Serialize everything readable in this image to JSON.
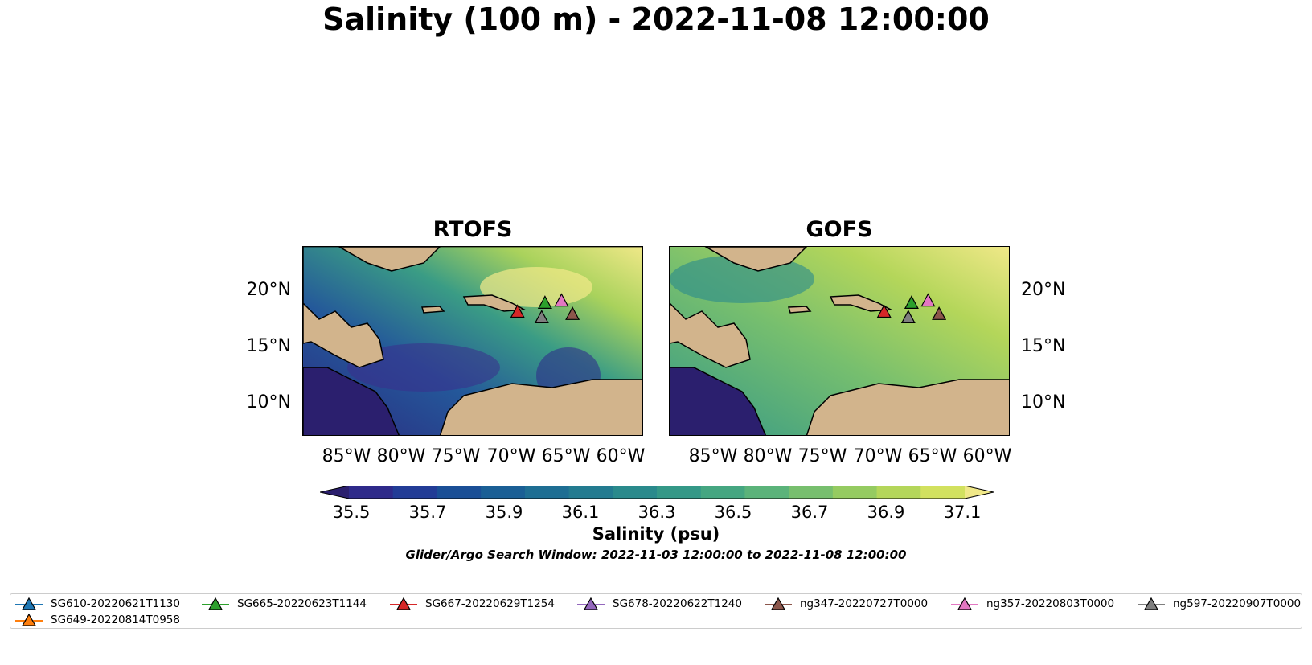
{
  "title": "Salinity (100 m) - 2022-11-08 12:00:00",
  "panels": [
    {
      "title": "RTOFS"
    },
    {
      "title": "GOFS"
    }
  ],
  "lat_ticks": [
    "20°N",
    "15°N",
    "10°N"
  ],
  "lon_ticks": [
    "85°W",
    "80°W",
    "75°W",
    "70°W",
    "65°W",
    "60°W"
  ],
  "colorbar": {
    "label": "Salinity (psu)",
    "ticks": [
      "35.5",
      "35.7",
      "35.9",
      "36.1",
      "36.3",
      "36.5",
      "36.7",
      "36.9",
      "37.1"
    ],
    "colors": [
      "#2b1f6e",
      "#2e2a8a",
      "#223c96",
      "#1a4f96",
      "#1a5f95",
      "#1e6e93",
      "#237b90",
      "#2a8a8c",
      "#349887",
      "#45a681",
      "#5bb37a",
      "#77bf6e",
      "#95cb61",
      "#b4d65a",
      "#d2e15f",
      "#f0e888"
    ]
  },
  "search_window": "Glider/Argo Search Window: 2022-11-03 12:00:00 to 2022-11-08 12:00:00",
  "legend": [
    {
      "label": "SG610-20220621T1130",
      "color": "#1f77b4"
    },
    {
      "label": "SG649-20220814T0958",
      "color": "#ff7f0e"
    },
    {
      "label": "SG665-20220623T1144",
      "color": "#2ca02c"
    },
    {
      "label": "SG667-20220629T1254",
      "color": "#d62728"
    },
    {
      "label": "SG678-20220622T1240",
      "color": "#9467bd"
    },
    {
      "label": "ng347-20220727T0000",
      "color": "#8c564b"
    },
    {
      "label": "ng357-20220803T0000",
      "color": "#e377c2"
    },
    {
      "label": "ng597-20220907T0000",
      "color": "#7f7f7f"
    }
  ],
  "glider_positions": [
    {
      "label": "SG667-20220629T1254",
      "lon": -69.5,
      "lat": 18.2
    },
    {
      "label": "SG665-20220623T1144",
      "lon": -67.0,
      "lat": 19.0
    },
    {
      "label": "ng357-20220803T0000",
      "lon": -65.5,
      "lat": 19.2
    },
    {
      "label": "ng597-20220907T0000",
      "lon": -67.3,
      "lat": 17.7
    },
    {
      "label": "ng347-20220727T0000",
      "lon": -64.5,
      "lat": 18.0
    }
  ],
  "map_extent": {
    "lon": [
      -89,
      -58
    ],
    "lat": [
      7,
      24
    ]
  }
}
